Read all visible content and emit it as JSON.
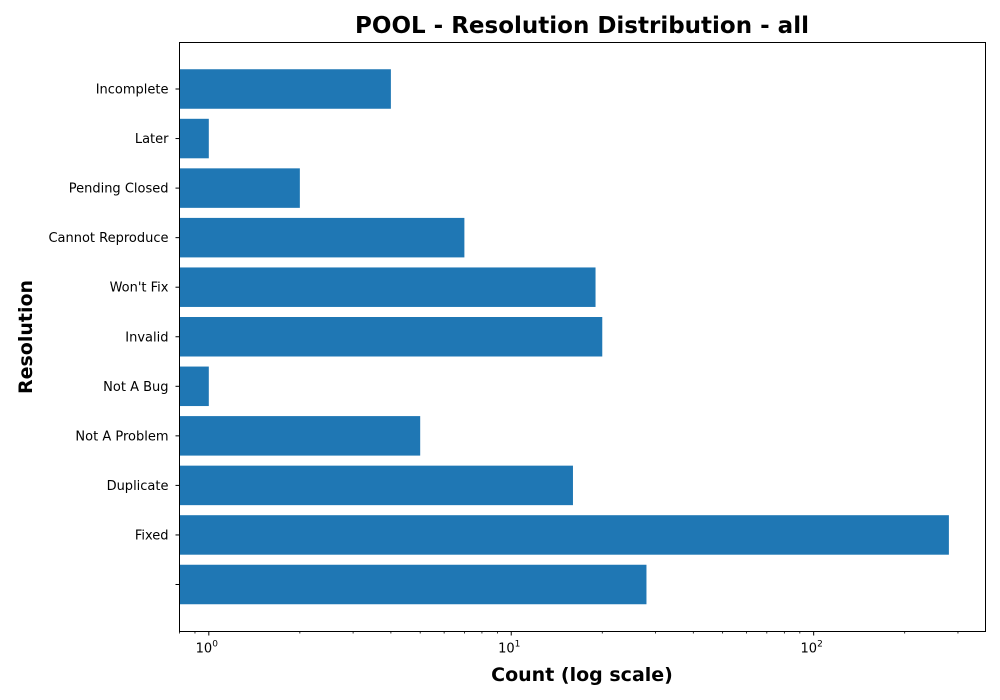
{
  "chart_data": {
    "type": "bar",
    "orientation": "horizontal",
    "title": "POOL - Resolution Distribution - all",
    "xlabel": "Count (log scale)",
    "ylabel": "Resolution",
    "x_scale": "log",
    "xlim": [
      0.8,
      370
    ],
    "x_ticks": [
      {
        "base": "10",
        "exp": "0",
        "value": 1
      },
      {
        "base": "10",
        "exp": "1",
        "value": 10
      },
      {
        "base": "10",
        "exp": "2",
        "value": 100
      }
    ],
    "categories": [
      "",
      "Fixed",
      "Duplicate",
      "Not A Problem",
      "Not A Bug",
      "Invalid",
      "Won't Fix",
      "Cannot Reproduce",
      "Pending Closed",
      "Later",
      "Incomplete"
    ],
    "values": [
      28,
      280,
      16,
      5,
      1,
      20,
      19,
      7,
      2,
      1,
      4
    ],
    "bar_color": "#1f77b4",
    "grid": false,
    "legend": "none"
  }
}
